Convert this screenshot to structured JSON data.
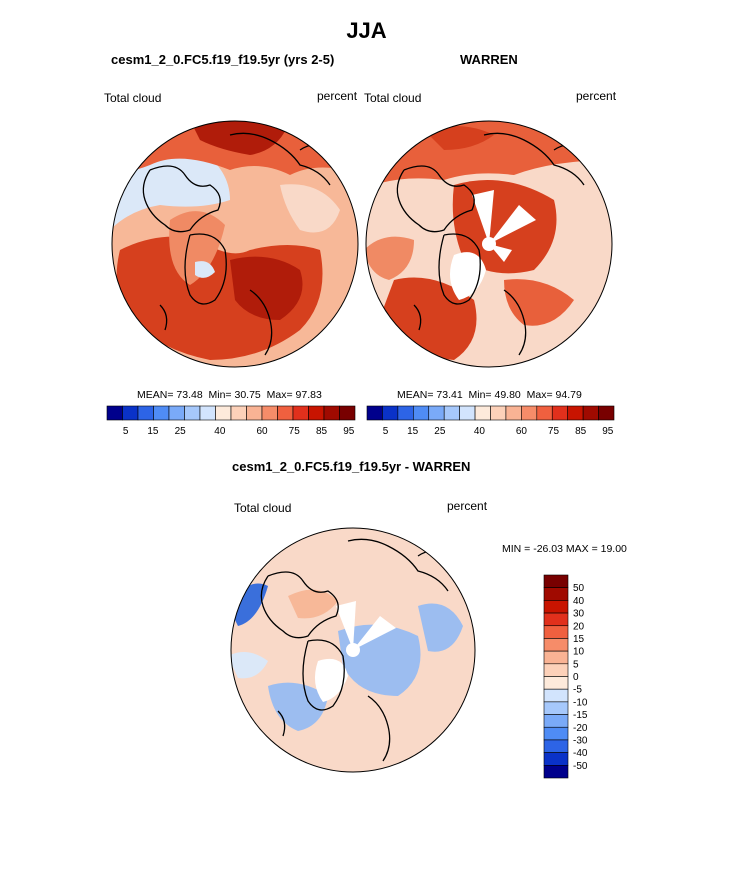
{
  "figure_title": "JJA",
  "palette": {
    "full": [
      "#00008c",
      "#0a32c8",
      "#2d64e6",
      "#4f8cf5",
      "#7aaaf8",
      "#a6c8fb",
      "#d2e4fd",
      "#fdeadb",
      "#fcd1b9",
      "#f9b394",
      "#f68c69",
      "#f0603f",
      "#e1301c",
      "#c81400",
      "#a00a00",
      "#780000"
    ],
    "map": {
      "pale": "#f9d9c8",
      "light": "#f7b898",
      "mid": "#f08a64",
      "orange": "#e8603b",
      "dark": "#d6401e",
      "deep": "#b01c0a",
      "lightblue": "#dbe8f8",
      "blue": "#9cbdf0",
      "deepblue": "#3a6fdb"
    }
  },
  "panels": [
    {
      "title": "cesm1_2_0.FC5.f19_f19.5yr (yrs 2-5)",
      "left_label": "Total cloud",
      "right_label": "percent",
      "stats": {
        "mean_label": "MEAN=",
        "mean": "73.48",
        "min_label": "Min=",
        "min": "30.75",
        "max_label": "Max=",
        "max": "97.83"
      }
    },
    {
      "title": "WARREN",
      "left_label": "Total cloud",
      "right_label": "percent",
      "stats": {
        "mean_label": "MEAN=",
        "mean": "73.41",
        "min_label": "Min=",
        "min": "49.80",
        "max_label": "Max=",
        "max": "94.79"
      }
    },
    {
      "title": "cesm1_2_0.FC5.f19_f19.5yr - WARREN",
      "left_label": "Total cloud",
      "right_label": "percent",
      "range_text": "MIN = -26.03 MAX =  19.00"
    }
  ],
  "chart_data": [
    {
      "type": "heatmap",
      "title": "cesm1_2_0.FC5.f19_f19.5yr (yrs 2-5)",
      "projection": "north polar stereographic",
      "variable": "Total cloud",
      "units": "percent",
      "mean": 73.48,
      "min": 30.75,
      "max": 97.83,
      "colorbar": {
        "orientation": "horizontal",
        "tick_labels": [
          "5",
          "15",
          "25",
          "40",
          "60",
          "75",
          "85",
          "95"
        ],
        "ticks": [
          5,
          15,
          25,
          40,
          60,
          75,
          85,
          95
        ],
        "range": [
          0,
          100
        ],
        "n_colors": 16
      }
    },
    {
      "type": "heatmap",
      "title": "WARREN",
      "projection": "north polar stereographic",
      "variable": "Total cloud",
      "units": "percent",
      "mean": 73.41,
      "min": 49.8,
      "max": 94.79,
      "colorbar": {
        "orientation": "horizontal",
        "tick_labels": [
          "5",
          "15",
          "25",
          "40",
          "60",
          "75",
          "85",
          "95"
        ],
        "ticks": [
          5,
          15,
          25,
          40,
          60,
          75,
          85,
          95
        ],
        "range": [
          0,
          100
        ],
        "n_colors": 16
      }
    },
    {
      "type": "heatmap",
      "title": "cesm1_2_0.FC5.f19_f19.5yr - WARREN",
      "projection": "north polar stereographic",
      "variable": "Total cloud",
      "units": "percent",
      "min": -26.03,
      "max": 19.0,
      "colorbar": {
        "orientation": "vertical",
        "tick_labels": [
          "50",
          "40",
          "30",
          "20",
          "15",
          "10",
          "5",
          "0",
          "-5",
          "-10",
          "-15",
          "-20",
          "-30",
          "-40",
          "-50"
        ],
        "ticks": [
          50,
          40,
          30,
          20,
          15,
          10,
          5,
          0,
          -5,
          -10,
          -15,
          -20,
          -30,
          -40,
          -50
        ],
        "n_colors": 16
      }
    }
  ]
}
